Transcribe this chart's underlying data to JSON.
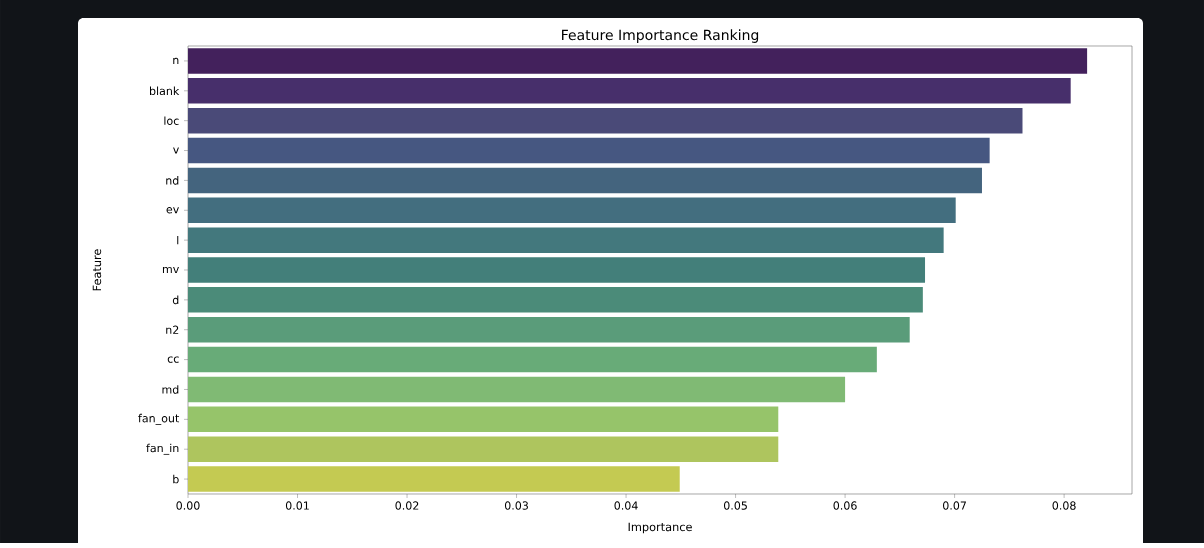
{
  "chart_data": {
    "type": "bar",
    "orientation": "horizontal",
    "title": "Feature Importance Ranking",
    "xlabel": "Importance",
    "ylabel": "Feature",
    "categories": [
      "n",
      "blank",
      "loc",
      "v",
      "nd",
      "ev",
      "l",
      "mv",
      "d",
      "n2",
      "cc",
      "md",
      "fan_out",
      "fan_in",
      "b"
    ],
    "values": [
      0.0821,
      0.0806,
      0.0762,
      0.0732,
      0.0725,
      0.0701,
      0.069,
      0.0673,
      0.0671,
      0.0659,
      0.0629,
      0.06,
      0.0539,
      0.0539,
      0.0449
    ],
    "colors": [
      "#43215c",
      "#472f6b",
      "#4a4a78",
      "#465781",
      "#44647e",
      "#436e7f",
      "#43787d",
      "#437f7a",
      "#4b8b79",
      "#5a9c7a",
      "#68ab78",
      "#80ba74",
      "#96c46a",
      "#aec55e",
      "#c4ca52"
    ],
    "xlim": [
      0,
      0.0862
    ],
    "xticks": [
      {
        "value": 0,
        "label": "0.00"
      },
      {
        "value": 0.01,
        "label": "0.01"
      },
      {
        "value": 0.02,
        "label": "0.02"
      },
      {
        "value": 0.03,
        "label": "0.03"
      },
      {
        "value": 0.04,
        "label": "0.04"
      },
      {
        "value": 0.05,
        "label": "0.05"
      },
      {
        "value": 0.06,
        "label": "0.06"
      },
      {
        "value": 0.07,
        "label": "0.07"
      },
      {
        "value": 0.08,
        "label": "0.08"
      }
    ],
    "grid": false
  }
}
